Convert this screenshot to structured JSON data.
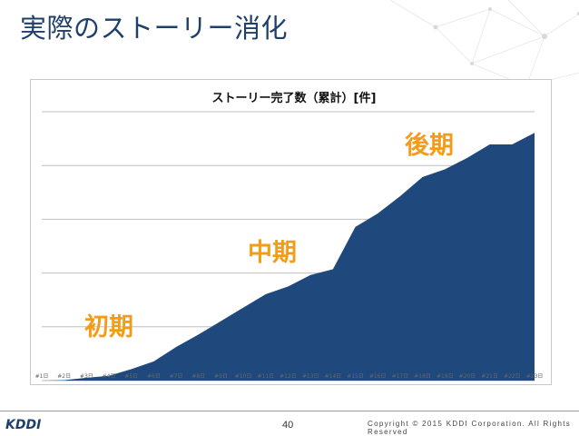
{
  "slide": {
    "title": "実際のストーリー消化",
    "page_number": "40",
    "copyright": "Copyright © 2015 KDDI Corporation. All Rights Reserved",
    "logo_text": "KDDI"
  },
  "annotations": {
    "early": "初期",
    "middle": "中期",
    "late": "後期"
  },
  "colors": {
    "title": "#1f3f6c",
    "area_fill": "#1f497d",
    "annotation": "#f39c1a"
  },
  "chart_data": {
    "type": "area",
    "title": "ストーリー完了数（累計）[件]",
    "xlabel": "",
    "ylabel": "",
    "categories": [
      "#1日",
      "#2日",
      "#3日",
      "#4日",
      "#5日",
      "#6日",
      "#7日",
      "#8日",
      "#9日",
      "#10日",
      "#11日",
      "#12日",
      "#13日",
      "#14日",
      "#15日",
      "#16日",
      "#17日",
      "#18日",
      "#19日",
      "#20日",
      "#21日",
      "#22日",
      "#23日"
    ],
    "series": [
      {
        "values": [
          0,
          0.5,
          3,
          5,
          12,
          20,
          35,
          48,
          62,
          76,
          90,
          98,
          110,
          116,
          160,
          174,
          192,
          212,
          220,
          232,
          246,
          246,
          258
        ]
      }
    ],
    "ylim": [
      0,
      280
    ],
    "grid": true,
    "legend": "none"
  }
}
